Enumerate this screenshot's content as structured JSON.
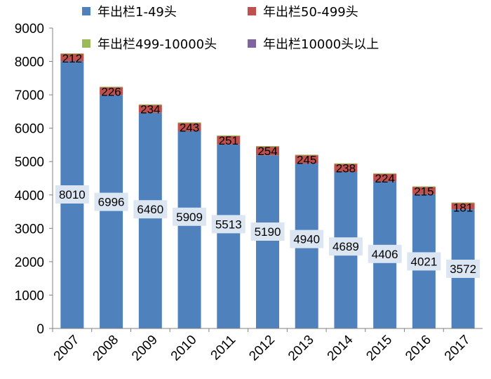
{
  "chart_data": {
    "type": "bar",
    "stacked": true,
    "title": "",
    "xlabel": "",
    "ylabel": "",
    "ylim": [
      0,
      9000
    ],
    "yticks": [
      0,
      1000,
      2000,
      3000,
      4000,
      5000,
      6000,
      7000,
      8000,
      9000
    ],
    "categories": [
      "2007",
      "2008",
      "2009",
      "2010",
      "2011",
      "2012",
      "2013",
      "2014",
      "2015",
      "2016",
      "2017"
    ],
    "series": [
      {
        "name": "年出栏1-49头",
        "color": "#4f81bd",
        "values": [
          8010,
          6996,
          6460,
          5909,
          5513,
          5190,
          4940,
          4689,
          4406,
          4021,
          3572
        ]
      },
      {
        "name": "年出栏50-499头",
        "color": "#c0504d",
        "values": [
          212,
          226,
          234,
          243,
          251,
          254,
          245,
          238,
          224,
          215,
          181
        ]
      },
      {
        "name": "年出栏499-10000头",
        "color": "#9bbb59",
        "values": [
          22,
          22,
          22,
          22,
          22,
          22,
          22,
          22,
          22,
          22,
          22
        ]
      },
      {
        "name": "年出栏10000头以上",
        "color": "#8064a2",
        "values": [
          0,
          0,
          0,
          0,
          0,
          0,
          0,
          0,
          0,
          0,
          0
        ]
      }
    ],
    "legend_position": "top",
    "grid": false
  }
}
